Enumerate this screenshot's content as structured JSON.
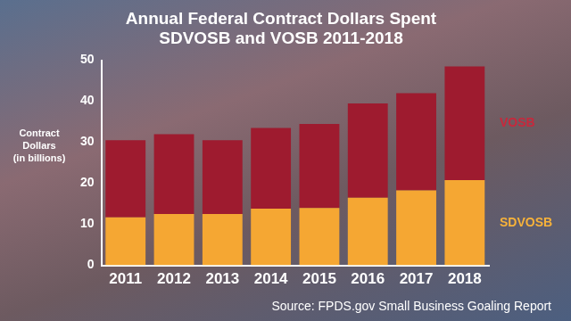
{
  "chart_data": {
    "type": "bar",
    "title": [
      "Annual Federal Contract Dollars Spent",
      "SDVOSB and VOSB 2011-2018"
    ],
    "y_label": "Contract Dollars (in billions)",
    "annotation": "Source: FPDS.gov Small Business Goaling Report",
    "categories": [
      "2011",
      "2012",
      "2013",
      "2014",
      "2015",
      "2016",
      "2017",
      "2018"
    ],
    "series": [
      {
        "name": "SDVOSB",
        "color": "#f5a733",
        "values": [
          11.7,
          12.5,
          12.5,
          13.8,
          14,
          16.5,
          18.3,
          20.8
        ]
      },
      {
        "name": "VOSB",
        "color": "#9e1b2f",
        "values": [
          18.8,
          19.5,
          18,
          19.7,
          20.5,
          23,
          23.7,
          27.7
        ]
      }
    ],
    "stacked": true,
    "ylim": [
      0,
      50
    ],
    "yticks": [
      0,
      10,
      20,
      30,
      40,
      50
    ],
    "grid": false
  }
}
